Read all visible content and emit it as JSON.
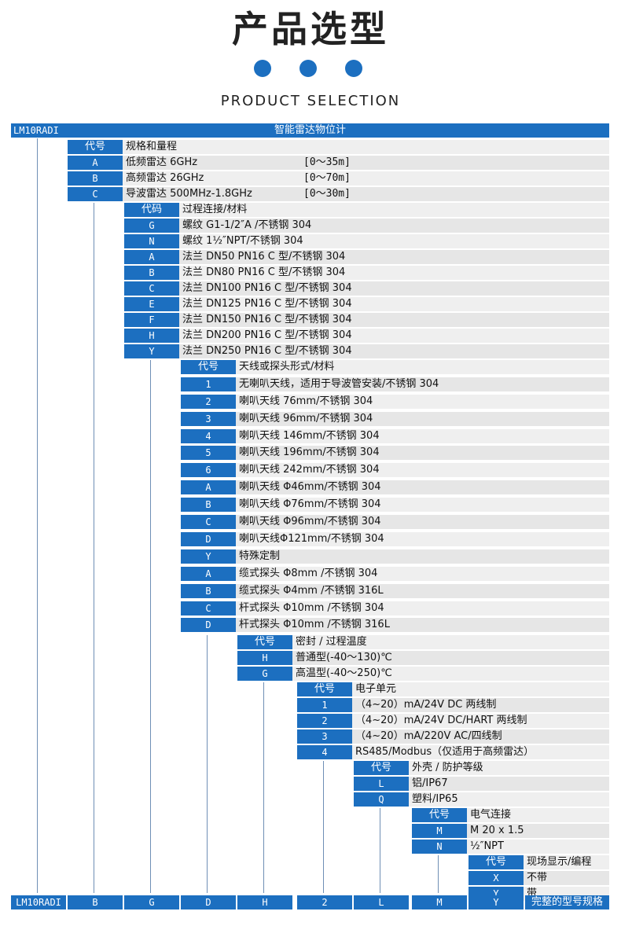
{
  "header": {
    "title": "产品选型",
    "subtitle": "PRODUCT SELECTION"
  },
  "accent_color": "#1c6fc0",
  "top_bar": {
    "code": "LM10RADI",
    "title": "智能雷达物位计"
  },
  "sections": [
    {
      "header": {
        "code": "代号",
        "desc": "规格和量程"
      },
      "options": [
        {
          "code": "A",
          "desc": "低频雷达 6GHz",
          "range": "[0～35m]"
        },
        {
          "code": "B",
          "desc": "高频雷达 26GHz",
          "range": "[0～70m]"
        },
        {
          "code": "C",
          "desc": "导波雷达 500MHz-1.8GHz",
          "range": "[0～30m]"
        }
      ]
    },
    {
      "header": {
        "code": "代码",
        "desc": "过程连接/材料"
      },
      "options": [
        {
          "code": "G",
          "desc": "螺纹 G1-1/2″A /不锈钢 304"
        },
        {
          "code": "N",
          "desc": "螺纹 1½″NPT/不锈钢 304"
        },
        {
          "code": "A",
          "desc": "法兰 DN50 PN16 C 型/不锈钢 304"
        },
        {
          "code": "B",
          "desc": "法兰 DN80 PN16 C 型/不锈钢 304"
        },
        {
          "code": "C",
          "desc": "法兰 DN100 PN16 C 型/不锈钢 304"
        },
        {
          "code": "E",
          "desc": "法兰 DN125 PN16 C 型/不锈钢 304"
        },
        {
          "code": "F",
          "desc": "法兰 DN150 PN16 C 型/不锈钢 304"
        },
        {
          "code": "H",
          "desc": "法兰 DN200 PN16 C 型/不锈钢 304"
        },
        {
          "code": "Y",
          "desc": "法兰 DN250 PN16 C 型/不锈钢 304"
        }
      ]
    },
    {
      "header": {
        "code": "代号",
        "desc": "天线或探头形式/材料"
      },
      "options": [
        {
          "code": "1",
          "desc": "无喇叭天线，适用于导波管安装/不锈钢 304"
        },
        {
          "code": "2",
          "desc": "喇叭天线 76mm/不锈钢 304"
        },
        {
          "code": "3",
          "desc": "喇叭天线 96mm/不锈钢 304"
        },
        {
          "code": "4",
          "desc": "喇叭天线 146mm/不锈钢 304"
        },
        {
          "code": "5",
          "desc": "喇叭天线 196mm/不锈钢 304"
        },
        {
          "code": "6",
          "desc": "喇叭天线 242mm/不锈钢 304"
        },
        {
          "code": "A",
          "desc": "喇叭天线 Φ46mm/不锈钢 304"
        },
        {
          "code": "B",
          "desc": "喇叭天线 Φ76mm/不锈钢 304"
        },
        {
          "code": "C",
          "desc": "喇叭天线 Φ96mm/不锈钢 304"
        },
        {
          "code": "D",
          "desc": "喇叭天线Φ121mm/不锈钢 304"
        },
        {
          "code": "Y",
          "desc": "特殊定制"
        },
        {
          "code": "A",
          "desc": "缆式探头 Φ8mm /不锈钢 304"
        },
        {
          "code": "B",
          "desc": "缆式探头 Φ4mm /不锈钢 316L"
        },
        {
          "code": "C",
          "desc": "杆式探头 Φ10mm /不锈钢 304"
        },
        {
          "code": "D",
          "desc": "杆式探头 Φ10mm /不锈钢 316L"
        }
      ]
    },
    {
      "header": {
        "code": "代号",
        "desc": "密封 / 过程温度"
      },
      "options": [
        {
          "code": "H",
          "desc": "普通型(-40～130)℃"
        },
        {
          "code": "G",
          "desc": "高温型(-40～250)℃"
        }
      ]
    },
    {
      "header": {
        "code": "代号",
        "desc": "电子单元"
      },
      "options": [
        {
          "code": "1",
          "desc": "（4~20）mA/24V DC 两线制"
        },
        {
          "code": "2",
          "desc": "（4~20）mA/24V DC/HART 两线制"
        },
        {
          "code": "3",
          "desc": "（4~20）mA/220V AC/四线制"
        },
        {
          "code": "4",
          "desc": "RS485/Modbus（仅适用于高频雷达）"
        }
      ]
    },
    {
      "header": {
        "code": "代号",
        "desc": "外壳 / 防护等级"
      },
      "options": [
        {
          "code": "L",
          "desc": "铝/IP67"
        },
        {
          "code": "Q",
          "desc": "塑料/IP65"
        }
      ]
    },
    {
      "header": {
        "code": "代号",
        "desc": "电气连接"
      },
      "options": [
        {
          "code": "M",
          "desc": "M 20 x 1.5"
        },
        {
          "code": "N",
          "desc": "½″NPT"
        }
      ]
    },
    {
      "header": {
        "code": "代号",
        "desc": "现场显示/编程"
      },
      "options": [
        {
          "code": "X",
          "desc": "不带"
        },
        {
          "code": "Y",
          "desc": "带"
        }
      ]
    }
  ],
  "footer": {
    "codes": [
      "LM10RADI",
      "B",
      "G",
      "D",
      "H",
      "2",
      "L",
      "M",
      "Y"
    ],
    "label": "完整的型号规格"
  }
}
